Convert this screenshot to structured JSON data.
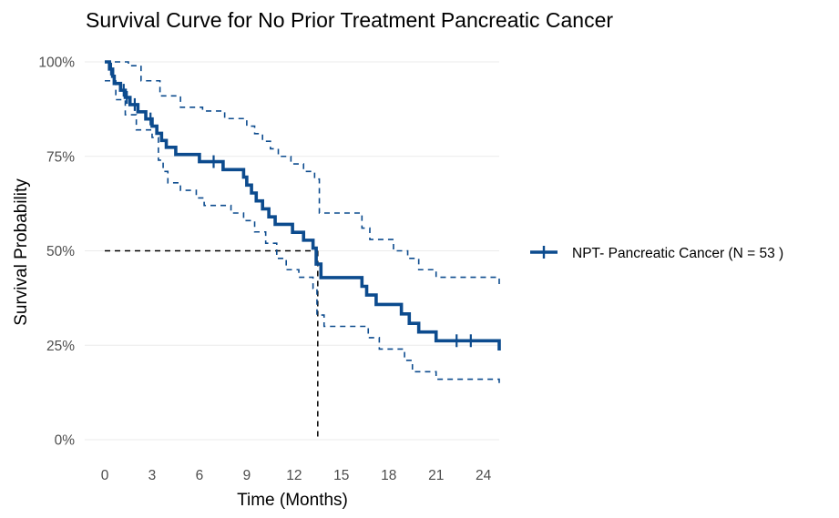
{
  "chart_data": {
    "type": "line",
    "title": "Survival Curve for No Prior Treatment Pancreatic Cancer",
    "xlabel": "Time (Months)",
    "ylabel": "Survival Probability",
    "xlim": [
      0,
      25
    ],
    "ylim": [
      0,
      1
    ],
    "x_ticks": [
      0,
      3,
      6,
      9,
      12,
      15,
      18,
      21,
      24
    ],
    "x_tick_labels": [
      "0",
      "3",
      "6",
      "9",
      "12",
      "15",
      "18",
      "21",
      "24"
    ],
    "y_ticks": [
      0,
      0.25,
      0.5,
      0.75,
      1.0
    ],
    "y_tick_labels": [
      "0%",
      "25%",
      "50%",
      "75%",
      "100%"
    ],
    "grid": true,
    "legend_position": "right",
    "median_survival": 13.5,
    "series": [
      {
        "name": "NPT- Pancreatic Cancer (N = 53 )",
        "color": "#0c4b8e",
        "step": [
          [
            0,
            1.0
          ],
          [
            0.3,
            0.981
          ],
          [
            0.5,
            0.962
          ],
          [
            0.6,
            0.943
          ],
          [
            1.0,
            0.925
          ],
          [
            1.3,
            0.906
          ],
          [
            1.6,
            0.887
          ],
          [
            2.1,
            0.868
          ],
          [
            2.6,
            0.849
          ],
          [
            3.0,
            0.83
          ],
          [
            3.3,
            0.811
          ],
          [
            3.6,
            0.792
          ],
          [
            3.9,
            0.774
          ],
          [
            4.5,
            0.755
          ],
          [
            6.0,
            0.736
          ],
          [
            7.5,
            0.715
          ],
          [
            8.8,
            0.695
          ],
          [
            9.0,
            0.674
          ],
          [
            9.3,
            0.653
          ],
          [
            9.6,
            0.632
          ],
          [
            10.0,
            0.611
          ],
          [
            10.4,
            0.59
          ],
          [
            10.8,
            0.57
          ],
          [
            11.9,
            0.549
          ],
          [
            12.6,
            0.528
          ],
          [
            13.2,
            0.507
          ],
          [
            13.4,
            0.465
          ],
          [
            13.7,
            0.429
          ],
          [
            16.3,
            0.406
          ],
          [
            16.6,
            0.383
          ],
          [
            17.2,
            0.358
          ],
          [
            18.8,
            0.333
          ],
          [
            19.3,
            0.308
          ],
          [
            19.9,
            0.285
          ],
          [
            21.0,
            0.262
          ],
          [
            25.0,
            0.236
          ]
        ],
        "lower": [
          [
            0,
            0.95
          ],
          [
            0.7,
            0.9
          ],
          [
            1.3,
            0.86
          ],
          [
            2.0,
            0.82
          ],
          [
            3.0,
            0.8
          ],
          [
            3.4,
            0.74
          ],
          [
            3.7,
            0.71
          ],
          [
            4.0,
            0.68
          ],
          [
            4.8,
            0.66
          ],
          [
            5.8,
            0.64
          ],
          [
            6.3,
            0.62
          ],
          [
            8.0,
            0.6
          ],
          [
            8.8,
            0.58
          ],
          [
            9.5,
            0.55
          ],
          [
            10.2,
            0.52
          ],
          [
            10.9,
            0.48
          ],
          [
            11.5,
            0.45
          ],
          [
            12.3,
            0.43
          ],
          [
            13.2,
            0.4
          ],
          [
            13.45,
            0.33
          ],
          [
            13.9,
            0.3
          ],
          [
            16.7,
            0.27
          ],
          [
            17.4,
            0.24
          ],
          [
            19.0,
            0.21
          ],
          [
            19.5,
            0.18
          ],
          [
            21.0,
            0.16
          ],
          [
            25.0,
            0.14
          ]
        ],
        "upper": [
          [
            0,
            1.0
          ],
          [
            1.5,
            0.99
          ],
          [
            2.3,
            0.95
          ],
          [
            3.5,
            0.91
          ],
          [
            4.8,
            0.88
          ],
          [
            6.2,
            0.87
          ],
          [
            7.6,
            0.85
          ],
          [
            9.0,
            0.83
          ],
          [
            9.5,
            0.81
          ],
          [
            10.0,
            0.79
          ],
          [
            10.5,
            0.77
          ],
          [
            11.0,
            0.75
          ],
          [
            11.8,
            0.73
          ],
          [
            12.6,
            0.71
          ],
          [
            13.3,
            0.69
          ],
          [
            13.6,
            0.6
          ],
          [
            16.3,
            0.56
          ],
          [
            16.8,
            0.53
          ],
          [
            18.3,
            0.5
          ],
          [
            19.2,
            0.48
          ],
          [
            19.9,
            0.45
          ],
          [
            21.0,
            0.43
          ],
          [
            25.0,
            0.41
          ]
        ],
        "censored": [
          [
            0.4,
            0.981
          ],
          [
            1.2,
            0.925
          ],
          [
            1.4,
            0.906
          ],
          [
            1.9,
            0.887
          ],
          [
            2.9,
            0.849
          ],
          [
            6.9,
            0.736
          ],
          [
            22.3,
            0.262
          ],
          [
            23.2,
            0.262
          ]
        ]
      }
    ]
  }
}
